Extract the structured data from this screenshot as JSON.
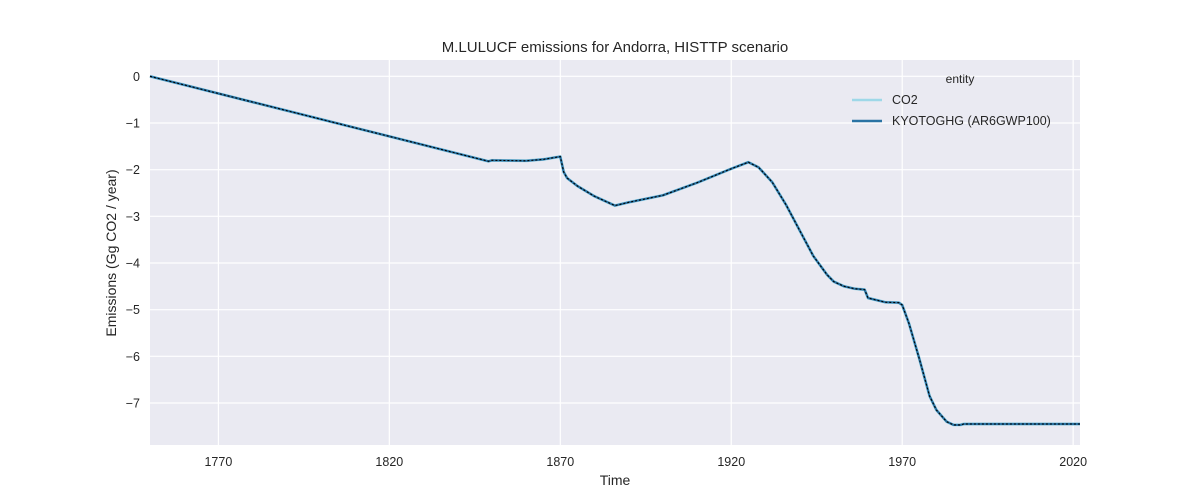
{
  "chart_data": {
    "type": "line",
    "title": "M.LULUCF emissions for Andorra, HISTTP scenario",
    "xlabel": "Time",
    "ylabel": "Emissions (Gg CO2 / year)",
    "xlim": [
      1750,
      2022
    ],
    "ylim": [
      -7.9,
      0.35
    ],
    "x_ticks": [
      1770,
      1820,
      1870,
      1920,
      1970,
      2020
    ],
    "y_ticks": [
      0,
      -1,
      -2,
      -3,
      -4,
      -5,
      -6,
      -7
    ],
    "y_tick_labels": [
      "0",
      "−1",
      "−2",
      "−3",
      "−4",
      "−5",
      "−6",
      "−7"
    ],
    "grid": true,
    "legend_title": "entity",
    "legend_position": "top-right",
    "series": [
      {
        "name": "CO2",
        "color": "#9ed8e8",
        "style": "solid",
        "x": [
          1750,
          1849,
          1850,
          1860,
          1865,
          1870,
          1871,
          1872,
          1875,
          1880,
          1886,
          1890,
          1900,
          1910,
          1920,
          1925,
          1928,
          1932,
          1936,
          1940,
          1944,
          1948,
          1950,
          1953,
          1956,
          1959,
          1960,
          1965,
          1969,
          1970,
          1972,
          1975,
          1978,
          1980,
          1983,
          1985,
          1987,
          1988,
          1990,
          2000,
          2010,
          2022
        ],
        "y": [
          0,
          -1.82,
          -1.8,
          -1.81,
          -1.78,
          -1.72,
          -2.05,
          -2.18,
          -2.35,
          -2.57,
          -2.77,
          -2.7,
          -2.55,
          -2.28,
          -1.98,
          -1.84,
          -1.95,
          -2.27,
          -2.75,
          -3.3,
          -3.85,
          -4.25,
          -4.4,
          -4.5,
          -4.55,
          -4.57,
          -4.75,
          -4.84,
          -4.85,
          -4.9,
          -5.3,
          -6.05,
          -6.85,
          -7.15,
          -7.4,
          -7.47,
          -7.47,
          -7.45,
          -7.45,
          -7.45,
          -7.45,
          -7.45
        ]
      },
      {
        "name": "KYOTOGHG (AR6GWP100)",
        "color": "#2a73a4",
        "style": "solid",
        "x": [
          1750,
          1849,
          1850,
          1860,
          1865,
          1870,
          1871,
          1872,
          1875,
          1880,
          1886,
          1890,
          1900,
          1910,
          1920,
          1925,
          1928,
          1932,
          1936,
          1940,
          1944,
          1948,
          1950,
          1953,
          1956,
          1959,
          1960,
          1965,
          1969,
          1970,
          1972,
          1975,
          1978,
          1980,
          1983,
          1985,
          1987,
          1988,
          1990,
          2000,
          2010,
          2022
        ],
        "y": [
          0,
          -1.82,
          -1.8,
          -1.81,
          -1.78,
          -1.72,
          -2.05,
          -2.18,
          -2.35,
          -2.57,
          -2.77,
          -2.7,
          -2.55,
          -2.28,
          -1.98,
          -1.84,
          -1.95,
          -2.27,
          -2.75,
          -3.3,
          -3.85,
          -4.25,
          -4.4,
          -4.5,
          -4.55,
          -4.57,
          -4.75,
          -4.84,
          -4.85,
          -4.9,
          -5.3,
          -6.05,
          -6.85,
          -7.15,
          -7.4,
          -7.47,
          -7.47,
          -7.45,
          -7.45,
          -7.45,
          -7.45,
          -7.45
        ]
      }
    ],
    "overlay_line": {
      "color": "#000000",
      "style": "dotted",
      "follows": "KYOTOGHG (AR6GWP100)"
    },
    "plot_background": "#eaeaf2",
    "grid_color": "#ffffff"
  }
}
